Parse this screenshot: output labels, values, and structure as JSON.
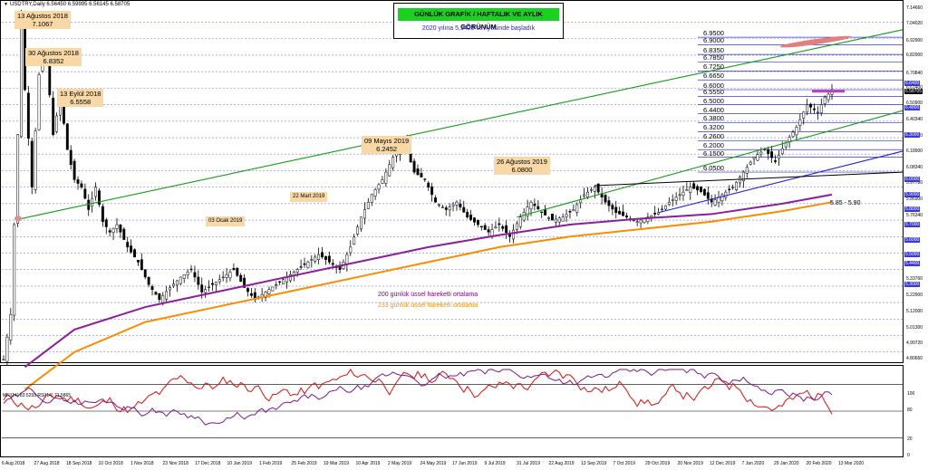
{
  "chart_data": {
    "type": "candlestick",
    "symbol_header": "USDTRY,Daily  6.56450 6.59995 6.56145 6.58705",
    "title": "GÜNLÜK GRAFİK / HAFTALIK VE AYLIK GÖRÜNÜM",
    "subtitle": "2020 yılına 5,9428 seviyesinde başladık",
    "annotations": [
      {
        "date": "13 Ağustos 2018",
        "value": "7.1067"
      },
      {
        "date": "30 Ağustos 2018",
        "value": "6.8352"
      },
      {
        "date": "13 Eylül 2018",
        "value": "6.5558"
      },
      {
        "date": "09 Mayıs 2019",
        "value": "6.2452"
      },
      {
        "date": "26 Ağustos 2019",
        "value": "6.0800"
      },
      {
        "date": "03 Ocak 2019",
        "value": ""
      },
      {
        "date": "22 Mart 2019",
        "value": ""
      }
    ],
    "levels": [
      "6.9500",
      "6.9000",
      "6.8350",
      "6.7850",
      "6.7250",
      "6.6650",
      "6.6000",
      "6.5550",
      "6.5000",
      "6.4400",
      "6.3800",
      "6.3200",
      "6.2600",
      "6.2000",
      "6.1500",
      "6.0500"
    ],
    "support_zone_note": "5.85 - 5.90",
    "ma_labels": [
      "200 günlük üssel hareketli ortalama",
      "233 günlük üssel hareketli ortalama"
    ],
    "y_axis_ticks": [
      "7.14660",
      "7.04020",
      "6.92900",
      "6.82900",
      "6.70840",
      "6.61400",
      "6.50900",
      "6.40340",
      "6.29460",
      "6.18900",
      "6.08340",
      "5.97780",
      "5.86900",
      "5.76340",
      "5.33760",
      "5.22900",
      "5.12000",
      "5.01300",
      "4.90720",
      "4.80660"
    ],
    "y_axis_highlighted": [
      "6.58705",
      "6.6400",
      "6.4800",
      "6.3000",
      "6.0000",
      "5.9000",
      "5.8000",
      "5.7000",
      "5.6000",
      "5.5000",
      "5.4400",
      "5.3000"
    ],
    "x_labels": [
      "6 Aug 2018",
      "27 Aug 2018",
      "18 Sep 2018",
      "10 Oct 2018",
      "1 Nov 2018",
      "23 Nov 2018",
      "17 Dec 2018",
      "10 Jan 2019",
      "1 Feb 2019",
      "25 Feb 2019",
      "19 Mar 2019",
      "10 Apr 2019",
      "2 May 2019",
      "24 May 2019",
      "17 Jun 2019",
      "9 Jul 2019",
      "31 Jul 2019",
      "22 Aug 2019",
      "13 Sep 2019",
      "7 Oct 2019",
      "29 Oct 2019",
      "20 Nov 2019",
      "12 Dec 2019",
      "7 Jan 2020",
      "29 Jan 2020",
      "20 Feb 2020",
      "13 Mar 2020"
    ],
    "indicator_header": "MFI(14) 83.5293  RSI(14) 71.5865",
    "indicator_axis": [
      "100",
      "80",
      "20",
      "0"
    ],
    "close_path": [
      [
        0,
        4.8
      ],
      [
        2,
        5.1
      ],
      [
        4,
        6.3
      ],
      [
        5,
        7.1
      ],
      [
        6,
        6.6
      ],
      [
        8,
        5.95
      ],
      [
        10,
        6.7
      ],
      [
        12,
        6.83
      ],
      [
        14,
        6.3
      ],
      [
        16,
        6.55
      ],
      [
        18,
        6.2
      ],
      [
        20,
        6.0
      ],
      [
        22,
        5.95
      ],
      [
        24,
        5.8
      ],
      [
        26,
        5.95
      ],
      [
        28,
        5.72
      ],
      [
        30,
        5.65
      ],
      [
        32,
        5.7
      ],
      [
        35,
        5.55
      ],
      [
        38,
        5.45
      ],
      [
        41,
        5.3
      ],
      [
        44,
        5.2
      ],
      [
        47,
        5.28
      ],
      [
        50,
        5.35
      ],
      [
        53,
        5.4
      ],
      [
        56,
        5.25
      ],
      [
        59,
        5.3
      ],
      [
        62,
        5.35
      ],
      [
        65,
        5.4
      ],
      [
        68,
        5.28
      ],
      [
        71,
        5.2
      ],
      [
        74,
        5.25
      ],
      [
        77,
        5.3
      ],
      [
        80,
        5.35
      ],
      [
        83,
        5.4
      ],
      [
        86,
        5.45
      ],
      [
        89,
        5.5
      ],
      [
        92,
        5.45
      ],
      [
        95,
        5.4
      ],
      [
        98,
        5.55
      ],
      [
        101,
        5.75
      ],
      [
        104,
        5.9
      ],
      [
        107,
        6.0
      ],
      [
        110,
        6.15
      ],
      [
        113,
        6.25
      ],
      [
        116,
        6.05
      ],
      [
        119,
        6.0
      ],
      [
        122,
        5.85
      ],
      [
        125,
        5.8
      ],
      [
        128,
        5.85
      ],
      [
        131,
        5.75
      ],
      [
        134,
        5.7
      ],
      [
        137,
        5.65
      ],
      [
        140,
        5.7
      ],
      [
        143,
        5.62
      ],
      [
        146,
        5.75
      ],
      [
        149,
        5.85
      ],
      [
        152,
        5.78
      ],
      [
        155,
        5.73
      ],
      [
        158,
        5.75
      ],
      [
        161,
        5.8
      ],
      [
        164,
        5.9
      ],
      [
        167,
        5.95
      ],
      [
        170,
        5.85
      ],
      [
        173,
        5.78
      ],
      [
        176,
        5.75
      ],
      [
        179,
        5.72
      ],
      [
        182,
        5.75
      ],
      [
        185,
        5.78
      ],
      [
        188,
        5.85
      ],
      [
        191,
        5.9
      ],
      [
        194,
        5.95
      ],
      [
        197,
        5.92
      ],
      [
        200,
        5.85
      ],
      [
        203,
        5.9
      ],
      [
        206,
        5.95
      ],
      [
        209,
        6.05
      ],
      [
        212,
        6.15
      ],
      [
        215,
        6.2
      ],
      [
        218,
        6.12
      ],
      [
        221,
        6.25
      ],
      [
        224,
        6.35
      ],
      [
        227,
        6.5
      ],
      [
        230,
        6.45
      ],
      [
        232,
        6.55
      ],
      [
        234,
        6.59
      ]
    ],
    "ema200": [
      [
        6,
        4.75
      ],
      [
        20,
        5.0
      ],
      [
        40,
        5.15
      ],
      [
        60,
        5.25
      ],
      [
        80,
        5.35
      ],
      [
        100,
        5.45
      ],
      [
        120,
        5.55
      ],
      [
        140,
        5.63
      ],
      [
        160,
        5.7
      ],
      [
        180,
        5.74
      ],
      [
        200,
        5.77
      ],
      [
        220,
        5.84
      ],
      [
        234,
        5.9
      ]
    ],
    "ema233": [
      [
        6,
        4.6
      ],
      [
        20,
        4.85
      ],
      [
        40,
        5.05
      ],
      [
        60,
        5.15
      ],
      [
        80,
        5.25
      ],
      [
        100,
        5.35
      ],
      [
        120,
        5.45
      ],
      [
        140,
        5.55
      ],
      [
        160,
        5.62
      ],
      [
        180,
        5.67
      ],
      [
        200,
        5.72
      ],
      [
        220,
        5.79
      ],
      [
        234,
        5.85
      ]
    ]
  }
}
